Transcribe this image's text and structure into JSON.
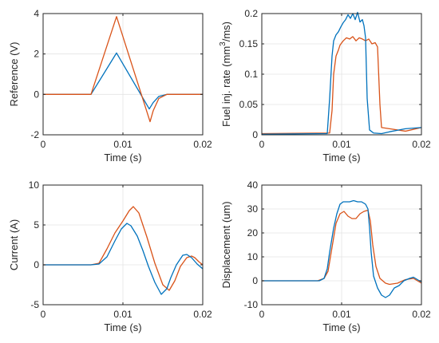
{
  "colors": {
    "series1": "#0072BD",
    "series2": "#D95319",
    "axis": "#262626",
    "grid": "#e4e4e4"
  },
  "chart_data": [
    {
      "type": "line",
      "xlabel": "Time (s)",
      "ylabel": "Reference (V)",
      "xlim": [
        0,
        0.02
      ],
      "ylim": [
        -2,
        4
      ],
      "xticks": [
        0,
        0.01,
        0.02
      ],
      "xticklabels": [
        "0",
        "0.01",
        "0.02"
      ],
      "yticks": [
        -2,
        0,
        2,
        4
      ],
      "yticklabels": [
        "-2",
        "0",
        "2",
        "4"
      ],
      "grid": true,
      "series": [
        {
          "color": "#0072BD",
          "x": [
            0,
            0.006,
            0.0092,
            0.0133,
            0.0138,
            0.0145,
            0.0155,
            0.02
          ],
          "y": [
            0,
            0,
            2.05,
            -0.72,
            -0.4,
            -0.1,
            0,
            0
          ]
        },
        {
          "color": "#D95319",
          "x": [
            0,
            0.006,
            0.0092,
            0.0134,
            0.0138,
            0.0145,
            0.0155,
            0.02
          ],
          "y": [
            0,
            0,
            3.85,
            -1.35,
            -0.8,
            -0.2,
            0,
            0
          ]
        }
      ]
    },
    {
      "type": "line",
      "xlabel": "Time (s)",
      "ylabel": "Fuel inj. rate (mm",
      "ylabel_sup": "3",
      "ylabel_tail": "/ms)",
      "xlim": [
        0,
        0.02
      ],
      "ylim": [
        0,
        0.2
      ],
      "xticks": [
        0,
        0.01,
        0.02
      ],
      "xticklabels": [
        "0",
        "0.01",
        "0.02"
      ],
      "yticks": [
        0,
        0.05,
        0.1,
        0.15,
        0.2
      ],
      "yticklabels": [
        "0",
        "0.05",
        "0.1",
        "0.15",
        "0.2"
      ],
      "grid": true,
      "series": [
        {
          "color": "#D95319",
          "x": [
            0,
            0.0085,
            0.0088,
            0.009,
            0.0093,
            0.0096,
            0.0098,
            0.0102,
            0.0106,
            0.011,
            0.0114,
            0.0118,
            0.0122,
            0.0126,
            0.013,
            0.0134,
            0.0138,
            0.0142,
            0.0145,
            0.0148,
            0.015,
            0.016,
            0.018,
            0.02
          ],
          "y": [
            0.002,
            0.003,
            0.04,
            0.1,
            0.13,
            0.14,
            0.148,
            0.155,
            0.16,
            0.158,
            0.162,
            0.155,
            0.16,
            0.158,
            0.155,
            0.158,
            0.15,
            0.152,
            0.145,
            0.05,
            0.012,
            0.01,
            0.006,
            0.012
          ]
        },
        {
          "color": "#0072BD",
          "x": [
            0,
            0.0082,
            0.0085,
            0.0088,
            0.009,
            0.0093,
            0.0096,
            0.0099,
            0.0102,
            0.0105,
            0.0108,
            0.0111,
            0.0114,
            0.0117,
            0.012,
            0.0123,
            0.0126,
            0.0128,
            0.013,
            0.0132,
            0.0135,
            0.014,
            0.015,
            0.016,
            0.018,
            0.02
          ],
          "y": [
            0.001,
            0.002,
            0.06,
            0.13,
            0.155,
            0.165,
            0.17,
            0.178,
            0.185,
            0.19,
            0.198,
            0.192,
            0.2,
            0.19,
            0.202,
            0.186,
            0.19,
            0.18,
            0.16,
            0.06,
            0.008,
            0.003,
            0.002,
            0.005,
            0.01,
            0.012
          ]
        }
      ]
    },
    {
      "type": "line",
      "xlabel": "Time (s)",
      "ylabel": "Current (A)",
      "xlim": [
        0,
        0.02
      ],
      "ylim": [
        -5,
        10
      ],
      "xticks": [
        0,
        0.01,
        0.02
      ],
      "xticklabels": [
        "0",
        "0.01",
        "0.02"
      ],
      "yticks": [
        -5,
        0,
        5,
        10
      ],
      "yticklabels": [
        "-5",
        "0",
        "5",
        "10"
      ],
      "grid": true,
      "series": [
        {
          "color": "#D95319",
          "x": [
            0,
            0.006,
            0.007,
            0.008,
            0.009,
            0.01,
            0.0108,
            0.0113,
            0.012,
            0.013,
            0.014,
            0.015,
            0.0158,
            0.0165,
            0.0172,
            0.018,
            0.0186,
            0.019,
            0.0195,
            0.02
          ],
          "y": [
            0,
            0,
            0.2,
            2.0,
            4.0,
            5.5,
            6.8,
            7.3,
            6.5,
            3.5,
            0.2,
            -2.5,
            -3.2,
            -2.0,
            -0.2,
            0.9,
            1.1,
            0.9,
            0.4,
            0.0
          ]
        },
        {
          "color": "#0072BD",
          "x": [
            0,
            0.006,
            0.007,
            0.008,
            0.009,
            0.0098,
            0.0105,
            0.011,
            0.0118,
            0.0125,
            0.0132,
            0.014,
            0.0148,
            0.0155,
            0.016,
            0.0167,
            0.0175,
            0.018,
            0.0186,
            0.0193,
            0.02
          ],
          "y": [
            0,
            0,
            0.1,
            1.0,
            3.0,
            4.5,
            5.2,
            4.9,
            3.6,
            1.8,
            -0.2,
            -2.2,
            -3.7,
            -3.0,
            -1.6,
            0.0,
            1.2,
            1.3,
            0.9,
            0.1,
            -0.5
          ]
        }
      ]
    },
    {
      "type": "line",
      "xlabel": "Time (s)",
      "ylabel": "Displacement (um)",
      "xlim": [
        0,
        0.02
      ],
      "ylim": [
        -10,
        40
      ],
      "xticks": [
        0,
        0.01,
        0.02
      ],
      "xticklabels": [
        "0",
        "0.01",
        "0.02"
      ],
      "yticks": [
        -10,
        0,
        10,
        20,
        30,
        40
      ],
      "yticklabels": [
        "-10",
        "0",
        "10",
        "20",
        "30",
        "40"
      ],
      "grid": true,
      "series": [
        {
          "color": "#D95319",
          "x": [
            0,
            0.007,
            0.0078,
            0.0083,
            0.0088,
            0.0093,
            0.0098,
            0.0103,
            0.0108,
            0.0113,
            0.0118,
            0.0123,
            0.0128,
            0.0133,
            0.0136,
            0.0139,
            0.0143,
            0.0148,
            0.0155,
            0.016,
            0.017,
            0.018,
            0.019,
            0.02
          ],
          "y": [
            0,
            0,
            1,
            4,
            14,
            24,
            28,
            29,
            27,
            26,
            26,
            28,
            29,
            29.5,
            25,
            15,
            6,
            1,
            -1,
            -1.5,
            -1,
            0.5,
            1,
            -1
          ]
        },
        {
          "color": "#0072BD",
          "x": [
            0,
            0.0072,
            0.0078,
            0.0082,
            0.0085,
            0.0088,
            0.009,
            0.0094,
            0.0098,
            0.0102,
            0.0106,
            0.011,
            0.0115,
            0.012,
            0.0125,
            0.013,
            0.0133,
            0.0135,
            0.0137,
            0.014,
            0.0145,
            0.015,
            0.0155,
            0.016,
            0.0166,
            0.0172,
            0.0178,
            0.0185,
            0.019,
            0.0195,
            0.02
          ],
          "y": [
            0,
            0,
            1,
            5,
            12,
            18,
            22,
            28,
            32,
            33,
            33,
            33,
            33.5,
            33,
            33,
            32,
            30,
            22,
            12,
            2,
            -3,
            -6,
            -7,
            -6,
            -3,
            -2,
            0,
            1,
            1.5,
            0.5,
            -0.5
          ]
        }
      ]
    }
  ]
}
